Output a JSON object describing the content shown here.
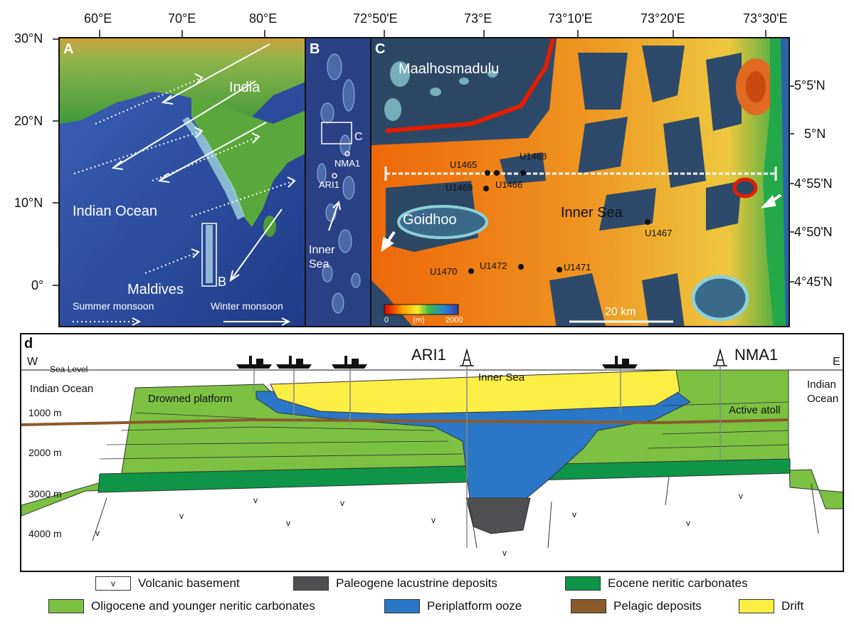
{
  "colors": {
    "ocean": "#2f4fa8",
    "land_green": "#3f9a3a",
    "volcanic": "#ffffff",
    "paleogene": "#505052",
    "eocene": "#0e9548",
    "oligocene": "#7cc142",
    "periplatform": "#2b77c7",
    "pelagic": "#8b5a2b",
    "drift": "#fbee45"
  },
  "top_axis": {
    "lon_a": [
      "60°E",
      "70°E",
      "80°E"
    ],
    "lon_c": [
      "72°50'E",
      "73°E",
      "73°10'E",
      "73°20'E",
      "73°30'E"
    ]
  },
  "left_axis": {
    "lat": [
      "30°N",
      "20°N",
      "10°N",
      "0°"
    ]
  },
  "right_axis": {
    "lat": [
      "5°5'N",
      "5°N",
      "4°55'N",
      "4°50'N",
      "4°45'N"
    ]
  },
  "panel_a": {
    "label": "A",
    "india": "India",
    "ocean": "Indian Ocean",
    "maldives": "Maldives",
    "box_b": "B",
    "summer": "Summer monsoon",
    "winter": "Winter monsoon"
  },
  "panel_b": {
    "label": "B",
    "box_c": "C",
    "nma1": "NMA1",
    "ari1": "ARI1",
    "inner_sea": "Inner\nSea"
  },
  "panel_c": {
    "label": "C",
    "maalhosmadulu": "Maalhosmadulu",
    "goidhoo": "Goidhoo",
    "inner_sea": "Inner Sea",
    "scale": "20 km",
    "colorbar_min": "0",
    "colorbar_unit": "(m)",
    "colorbar_max": "2000",
    "sites": [
      {
        "name": "U1465"
      },
      {
        "name": "U1468"
      },
      {
        "name": "U1469"
      },
      {
        "name": "U1466"
      },
      {
        "name": "U1467"
      },
      {
        "name": "U1470"
      },
      {
        "name": "U1472"
      },
      {
        "name": "U1471"
      }
    ]
  },
  "panel_d": {
    "label": "d",
    "w": "W",
    "e": "E",
    "sea_level": "Sea Level",
    "indian_ocean_left": "Indian Ocean",
    "indian_ocean_right_1": "Indian",
    "indian_ocean_right_2": "Ocean",
    "drowned": "Drowned platform",
    "ari1": "ARI1",
    "nma1": "NMA1",
    "inner_sea": "Inner Sea",
    "active_atoll": "Active atoll",
    "depths": [
      "1000 m",
      "2000 m",
      "3000 m",
      "4000 m"
    ],
    "v": "v"
  },
  "legend": [
    {
      "label": "Volcanic basement",
      "swatch": "v"
    },
    {
      "label": "Paleogene lacustrine deposits",
      "swatch": ""
    },
    {
      "label": "Eocene neritic carbonates",
      "swatch": ""
    },
    {
      "label": "Oligocene and younger neritic carbonates",
      "swatch": ""
    },
    {
      "label": "Periplatform ooze",
      "swatch": ""
    },
    {
      "label": "Pelagic deposits",
      "swatch": ""
    },
    {
      "label": "Drift",
      "swatch": ""
    }
  ]
}
